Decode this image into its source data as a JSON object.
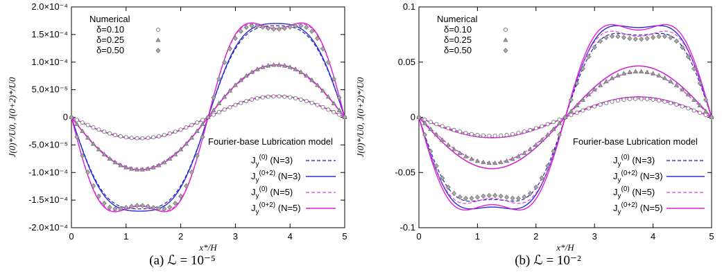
{
  "chart_data": [
    {
      "type": "line",
      "caption": "(a) ℒ = 10⁻⁵",
      "xlabel": "x*/H",
      "ylabel": "J(0)*/U0,  J(0+2)*/U0",
      "xlim": [
        0,
        5
      ],
      "ylim": [
        -0.0002,
        0.0002
      ],
      "xticks": [
        "0",
        "1",
        "2",
        "3",
        "4",
        "5"
      ],
      "yticks": [
        {
          "value": 0.0002,
          "label": "2.0×10⁻⁴"
        },
        {
          "value": 0.00015,
          "label": "1.5×10⁻⁴"
        },
        {
          "value": 0.0001,
          "label": "1.0×10⁻⁴"
        },
        {
          "value": 5e-05,
          "label": "5.0×10⁻⁵"
        },
        {
          "value": 0,
          "label": "0"
        },
        {
          "value": -5e-05,
          "label": "-5.0×10⁻⁵"
        },
        {
          "value": -0.0001,
          "label": "-1.0×10⁻⁴"
        },
        {
          "value": -0.00015,
          "label": "-1.5×10⁻⁴"
        },
        {
          "value": -0.0002,
          "label": "-2.0×10⁻⁴"
        }
      ],
      "legend_numerical_title": "Numerical",
      "legend_model_title": "Fourier-base Lubrication model",
      "cases": [
        {
          "label": "δ=0.10",
          "marker": "circle",
          "amp_num": 3.8e-05,
          "amp_n3_j0": 3.75e-05,
          "amp_n3_j02": 3.9e-05,
          "amp_n5_j0": 3.75e-05,
          "amp_n5_j02": 3.9e-05,
          "shape_n3": 0.0,
          "shape_n5": 0.0,
          "shape_num": 0.0
        },
        {
          "label": "δ=0.25",
          "marker": "triangle",
          "amp_num": 9.5e-05,
          "amp_n3_j0": 9.25e-05,
          "amp_n3_j02": 9.5e-05,
          "amp_n5_j0": 9.25e-05,
          "amp_n5_j02": 9.5e-05,
          "shape_n3": 0.05,
          "shape_n5": 0.05,
          "shape_num": 0.05
        },
        {
          "label": "δ=0.50",
          "marker": "diamond",
          "amp_num": 0.000166,
          "amp_n3_j0": 0.000166,
          "amp_n3_j02": 0.00017,
          "amp_n5_j0": 0.000169,
          "amp_n5_j02": 0.000171,
          "shape_n3": 0.28,
          "shape_n5": 0.55,
          "shape_num": 0.5
        }
      ],
      "series": [
        {
          "name": "Jy(0) (N=3)",
          "key": "n3_j0",
          "color": "#1f1fb8",
          "dash": "5,3",
          "width": 1.2
        },
        {
          "name": "Jy(0+2) (N=3)",
          "key": "n3_j02",
          "color": "#2b2bd6",
          "dash": "",
          "width": 1.4
        },
        {
          "name": "Jy(0) (N=5)",
          "key": "n5_j0",
          "color": "#e040e0",
          "dash": "5,3",
          "width": 1.2
        },
        {
          "name": "Jy(0+2) (N=5)",
          "key": "n5_j02",
          "color": "#e020d0",
          "dash": "",
          "width": 1.4
        }
      ],
      "legend_entries": [
        {
          "base": "J",
          "sub": "y",
          "sup": "(0)",
          "tail": " (N=3)"
        },
        {
          "base": "J",
          "sub": "y",
          "sup": "(0+2)",
          "tail": " (N=3)"
        },
        {
          "base": "J",
          "sub": "y",
          "sup": "(0)",
          "tail": " (N=5)"
        },
        {
          "base": "J",
          "sub": "y",
          "sup": "(0+2)",
          "tail": " (N=5)"
        }
      ]
    },
    {
      "type": "line",
      "caption": "(b) ℒ = 10⁻²",
      "xlabel": "x*/H",
      "ylabel": "J(0)*/U0,  J(0+2)*/U0",
      "xlim": [
        0,
        5
      ],
      "ylim": [
        -0.1,
        0.1
      ],
      "xticks": [
        "0",
        "1",
        "2",
        "3",
        "4",
        "5"
      ],
      "yticks": [
        {
          "value": 0.1,
          "label": "0.1"
        },
        {
          "value": 0.05,
          "label": "0.05"
        },
        {
          "value": 0,
          "label": "0"
        },
        {
          "value": -0.05,
          "label": "-0.05"
        },
        {
          "value": -0.1,
          "label": "-0.1"
        }
      ],
      "legend_numerical_title": "Numerical",
      "legend_model_title": "Fourier-base Lubrication model",
      "cases": [
        {
          "label": "δ=0.10",
          "marker": "circle",
          "amp_num": 0.0168,
          "amp_n3_j0": 0.0168,
          "amp_n3_j02": 0.0185,
          "amp_n5_j0": 0.0168,
          "amp_n5_j02": 0.0185,
          "shape_n3": 0.0,
          "shape_n5": 0.0,
          "shape_num": 0.0
        },
        {
          "label": "δ=0.25",
          "marker": "triangle",
          "amp_num": 0.0415,
          "amp_n3_j0": 0.0412,
          "amp_n3_j02": 0.0465,
          "amp_n5_j0": 0.0412,
          "amp_n5_j02": 0.0465,
          "shape_n3": 0.0,
          "shape_n5": 0.0,
          "shape_num": 0.03
        },
        {
          "label": "δ=0.50",
          "marker": "diamond",
          "amp_num": 0.0735,
          "amp_n3_j0": 0.076,
          "amp_n3_j02": 0.083,
          "amp_n5_j0": 0.078,
          "amp_n5_j02": 0.084,
          "shape_n3": 0.45,
          "shape_n5": 0.55,
          "shape_num": 0.5
        }
      ],
      "series": [
        {
          "name": "Jy(0) (N=3)",
          "key": "n3_j0",
          "color": "#1f1fb8",
          "dash": "5,3",
          "width": 1.2
        },
        {
          "name": "Jy(0+2) (N=3)",
          "key": "n3_j02",
          "color": "#2b2bd6",
          "dash": "",
          "width": 1.4
        },
        {
          "name": "Jy(0) (N=5)",
          "key": "n5_j0",
          "color": "#e040e0",
          "dash": "5,3",
          "width": 1.2
        },
        {
          "name": "Jy(0+2) (N=5)",
          "key": "n5_j02",
          "color": "#e020d0",
          "dash": "",
          "width": 1.4
        }
      ],
      "legend_entries": [
        {
          "base": "J",
          "sub": "y",
          "sup": "(0)",
          "tail": " (N=3)"
        },
        {
          "base": "J",
          "sub": "y",
          "sup": "(0+2)",
          "tail": " (N=3)"
        },
        {
          "base": "J",
          "sub": "y",
          "sup": "(0)",
          "tail": " (N=5)"
        },
        {
          "base": "J",
          "sub": "y",
          "sup": "(0+2)",
          "tail": " (N=5)"
        }
      ]
    }
  ]
}
